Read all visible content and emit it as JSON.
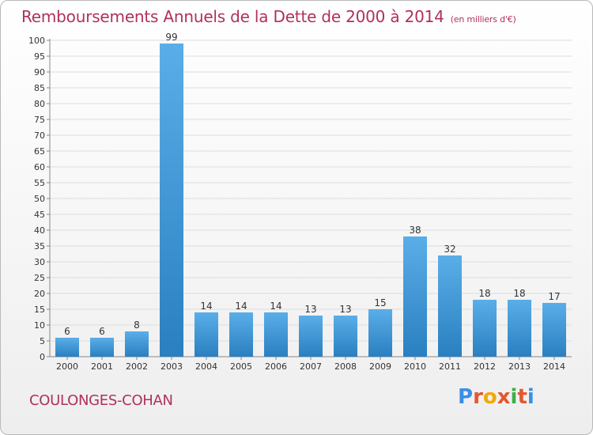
{
  "header": {
    "title": "Remboursements Annuels de la Dette de 2000 à 2014",
    "unit": "(en milliers d'€)"
  },
  "footer": {
    "commune": "COULONGES-COHAN",
    "logo_text": "Proxiti"
  },
  "colors": {
    "bar_top": "#5aaee8",
    "bar_bottom": "#2a7fc0",
    "title": "#b03060",
    "grid": "#dddddd"
  },
  "chart_data": {
    "type": "bar",
    "categories": [
      "2000",
      "2001",
      "2002",
      "2003",
      "2004",
      "2005",
      "2006",
      "2007",
      "2008",
      "2009",
      "2010",
      "2011",
      "2012",
      "2013",
      "2014"
    ],
    "values": [
      6,
      6,
      8,
      99,
      14,
      14,
      14,
      13,
      13,
      15,
      38,
      32,
      18,
      18,
      17
    ],
    "title": "Remboursements Annuels de la Dette de 2000 à 2014",
    "xlabel": "",
    "ylabel": "",
    "ylim": [
      0,
      100
    ],
    "ytick_step": 5,
    "grid": true,
    "data_labels": true
  }
}
